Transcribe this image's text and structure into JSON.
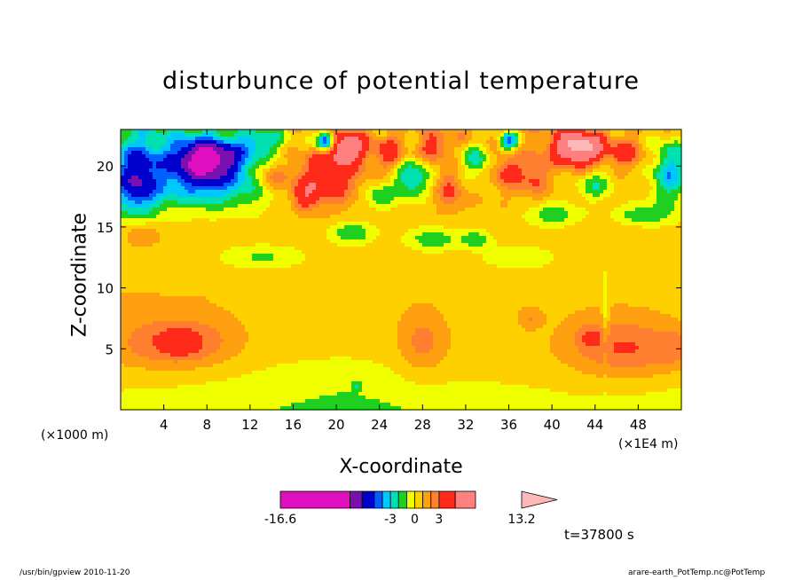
{
  "chart_data": {
    "type": "heatmap",
    "title": "disturbunce of potential temperature",
    "xlabel": "X-coordinate",
    "ylabel": "Z-coordinate",
    "x_unit_left": "(×1000 m)",
    "x_unit_right": "(×1E4 m)",
    "xlim": [
      0,
      52
    ],
    "ylim": [
      0,
      23
    ],
    "x_ticks": [
      "4",
      "8",
      "12",
      "16",
      "20",
      "24",
      "28",
      "32",
      "36",
      "40",
      "44",
      "48"
    ],
    "x_tick_values": [
      4,
      8,
      12,
      16,
      20,
      24,
      28,
      32,
      36,
      40,
      44,
      48
    ],
    "y_ticks": [
      "5",
      "10",
      "15",
      "20"
    ],
    "y_tick_values": [
      5,
      10,
      15,
      20
    ],
    "colorbar": {
      "range": [
        -16.6,
        13.2
      ],
      "labels": [
        "-16.6",
        "-3",
        "0",
        "3",
        "13.2"
      ],
      "label_values": [
        -16.6,
        -3,
        0,
        3,
        13.2
      ],
      "boundaries": [
        -16.6,
        -8,
        -6.5,
        -5,
        -4,
        -3,
        -2,
        -1,
        0,
        1,
        2,
        3,
        5,
        7.5,
        13.2
      ],
      "colors": [
        "#e010c0",
        "#7a10b0",
        "#0000cc",
        "#0060ff",
        "#00c8ff",
        "#00e0b0",
        "#20d020",
        "#f0ff00",
        "#ffd000",
        "#ffa010",
        "#ff8030",
        "#ff2a1a",
        "#ff8080"
      ],
      "extend": "max",
      "extend_color": "#ffb8b8"
    },
    "field_base_value": 0,
    "features": [
      {
        "x": 8,
        "z": 20.5,
        "sx": 3.6,
        "sz": 1.8,
        "amp": -9
      },
      {
        "x": 1.5,
        "z": 19,
        "sx": 2,
        "sz": 3,
        "amp": -5
      },
      {
        "x": 51,
        "z": 19.5,
        "sx": 1.6,
        "sz": 2.5,
        "amp": -4
      },
      {
        "x": 19,
        "z": 19,
        "sx": 3,
        "sz": 2.2,
        "amp": 4.5
      },
      {
        "x": 17,
        "z": 17.5,
        "sx": 1.2,
        "sz": 1.2,
        "amp": 3
      },
      {
        "x": 21,
        "z": 21.5,
        "sx": 1.8,
        "sz": 1.2,
        "amp": 6
      },
      {
        "x": 19,
        "z": 22,
        "sx": 0.8,
        "sz": 0.8,
        "amp": -8
      },
      {
        "x": 42.5,
        "z": 21.5,
        "sx": 2.4,
        "sz": 1.4,
        "amp": 8
      },
      {
        "x": 36,
        "z": 19.5,
        "sx": 1.4,
        "sz": 1.4,
        "amp": 3
      },
      {
        "x": 36,
        "z": 22,
        "sx": 0.9,
        "sz": 0.8,
        "amp": -5
      },
      {
        "x": 27,
        "z": 19,
        "sx": 1.6,
        "sz": 1.6,
        "amp": -4
      },
      {
        "x": 30.5,
        "z": 18,
        "sx": 1.2,
        "sz": 1.4,
        "amp": 2.5
      },
      {
        "x": 25,
        "z": 21,
        "sx": 1.2,
        "sz": 1.2,
        "amp": 3
      },
      {
        "x": 33,
        "z": 20.5,
        "sx": 1.5,
        "sz": 1.5,
        "amp": -3
      },
      {
        "x": 38.5,
        "z": 19,
        "sx": 1.2,
        "sz": 1.6,
        "amp": 2.5
      },
      {
        "x": 44,
        "z": 18.5,
        "sx": 1.5,
        "sz": 1.2,
        "amp": -2.5
      },
      {
        "x": 29,
        "z": 21.5,
        "sx": 1.2,
        "sz": 1.0,
        "amp": 3
      },
      {
        "x": 47,
        "z": 21,
        "sx": 1.4,
        "sz": 1.2,
        "amp": 3
      },
      {
        "x": 14,
        "z": 19,
        "sx": 1.4,
        "sz": 1.2,
        "amp": 2.5
      },
      {
        "x": 13,
        "z": 22,
        "sx": 2.0,
        "sz": 1.0,
        "amp": -3
      },
      {
        "x": 24,
        "z": 17.5,
        "sx": 1.5,
        "sz": 1.0,
        "amp": -2.5
      },
      {
        "x": 29,
        "z": 14,
        "sx": 2.5,
        "sz": 1.0,
        "amp": -2.5
      },
      {
        "x": 21.5,
        "z": 14.5,
        "sx": 2.0,
        "sz": 0.9,
        "amp": -2.5
      },
      {
        "x": 33,
        "z": 14,
        "sx": 1.5,
        "sz": 0.8,
        "amp": -2.3
      },
      {
        "x": 48.5,
        "z": 16,
        "sx": 2.5,
        "sz": 0.8,
        "amp": -2.5
      },
      {
        "x": 40,
        "z": 16,
        "sx": 2.5,
        "sz": 1.0,
        "amp": -2.5
      },
      {
        "x": 8,
        "z": 18,
        "sx": 6,
        "sz": 1.5,
        "amp": -2.5
      },
      {
        "x": 2,
        "z": 14.5,
        "sx": 1.5,
        "sz": 0.9,
        "amp": 1.8
      },
      {
        "x": 13,
        "z": 12.5,
        "sx": 4,
        "sz": 1.0,
        "amp": -1.8
      },
      {
        "x": 37,
        "z": 12.5,
        "sx": 3.5,
        "sz": 1.0,
        "amp": -1.8
      },
      {
        "x": 5.5,
        "z": 5.5,
        "sx": 5,
        "sz": 2.0,
        "amp": 2.8
      },
      {
        "x": 5.5,
        "z": 5.5,
        "sx": 1.5,
        "sz": 0.9,
        "amp": 1.5
      },
      {
        "x": 28,
        "z": 5.5,
        "sx": 2.2,
        "sz": 2.6,
        "amp": 1.9
      },
      {
        "x": 47,
        "z": 5,
        "sx": 5,
        "sz": 2.5,
        "amp": 2.6
      },
      {
        "x": 52,
        "z": 5,
        "sx": 2,
        "sz": 1.5,
        "amp": 1.5
      },
      {
        "x": 43.5,
        "z": 6,
        "sx": 1.2,
        "sz": 1.0,
        "amp": 1.5
      },
      {
        "x": 38,
        "z": 7.5,
        "sx": 1.0,
        "sz": 0.8,
        "amp": 1.3
      },
      {
        "x": 22,
        "z": 2,
        "sx": 0.4,
        "sz": 0.4,
        "amp": -1.5
      },
      {
        "x": 45,
        "z": 8,
        "sx": 0.3,
        "sz": 4.0,
        "amp": -1.6
      }
    ],
    "field_grid": [
      [
        -1.5,
        -0.5,
        1.2,
        1.4,
        1.0,
        0.6
      ],
      [
        -1.2,
        -0.4,
        0.4,
        0.9,
        0.6,
        0.4
      ],
      [
        0.8,
        0.6,
        0.5,
        0.8,
        0.8,
        0.4
      ],
      [
        1.0,
        0.9,
        0.8,
        0.6,
        0.8,
        0.6
      ],
      [
        0.9,
        0.3,
        0.1,
        0.5,
        0.7,
        0.3
      ],
      [
        -0.5,
        -0.7,
        -1.5,
        -0.6,
        -0.4,
        -0.6
      ]
    ]
  },
  "time_label": "t=37800 s",
  "footer": {
    "left": "/usr/bin/gpview   2010-11-20",
    "right": "arare-earth_PotTemp.nc@PotTemp"
  }
}
